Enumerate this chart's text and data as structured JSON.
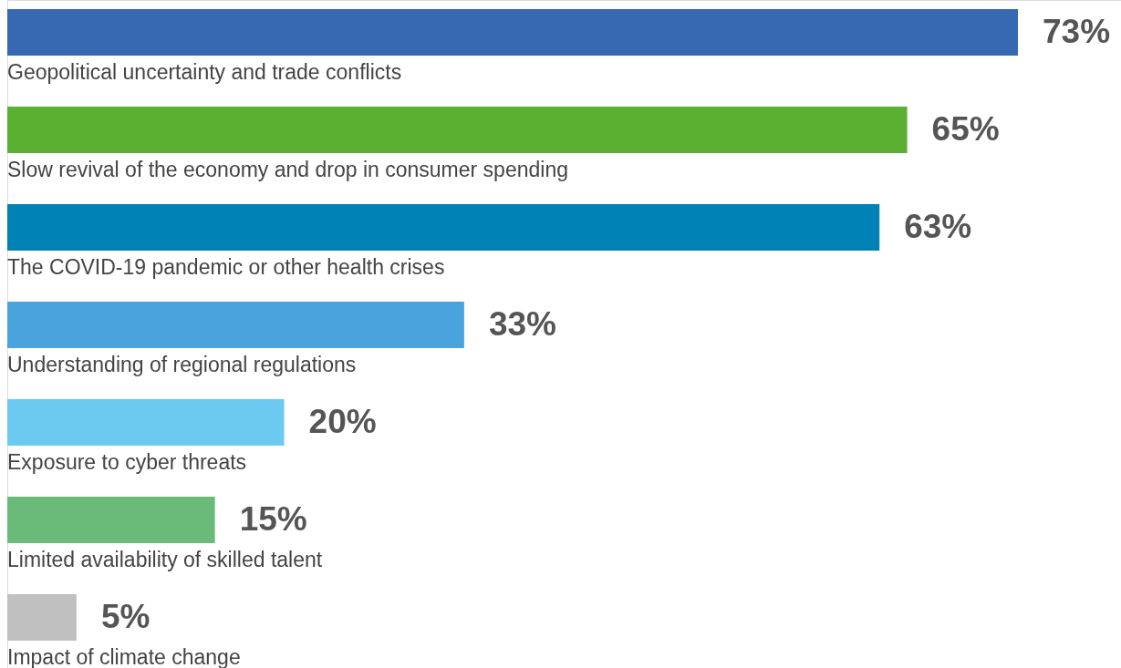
{
  "chart_data": {
    "type": "bar",
    "orientation": "horizontal",
    "categories": [
      "Geopolitical uncertainty and trade conflicts",
      "Slow revival of the economy and drop in consumer spending",
      "The COVID-19 pandemic or other health crises",
      "Understanding of regional regulations",
      "Exposure to cyber threats",
      "Limited availability of skilled talent",
      "Impact of climate change"
    ],
    "values": [
      73,
      65,
      63,
      33,
      20,
      15,
      5
    ],
    "colors": [
      "#3669b2",
      "#5ab031",
      "#0082b4",
      "#4aa3dc",
      "#6ccaf0",
      "#6abb7a",
      "#c0c0c0"
    ],
    "value_labels": [
      "73%",
      "65%",
      "63%",
      "33%",
      "20%",
      "15%",
      "5%"
    ]
  }
}
